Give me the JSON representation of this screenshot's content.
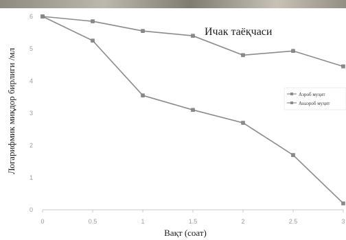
{
  "chart_data": {
    "type": "line",
    "title": "Ичак таёқчаси",
    "xlabel": "Вақт (соат)",
    "ylabel": "Логарифмик миқдор бирлиги /мл",
    "x": [
      0,
      0.5,
      1,
      1.5,
      2,
      2.5,
      3
    ],
    "x_tick_labels": [
      "0",
      "0.5",
      "1",
      "1.5",
      "2",
      "2.5",
      "3"
    ],
    "xlim": [
      0,
      3
    ],
    "ylim": [
      0,
      6
    ],
    "y_ticks": [
      0,
      1,
      2,
      3,
      4,
      5,
      6
    ],
    "grid": false,
    "legend_position": "right",
    "series": [
      {
        "name": "Аэроб муҳит",
        "values": [
          6.0,
          5.85,
          5.55,
          5.4,
          4.8,
          4.93,
          4.45
        ]
      },
      {
        "name": "Анаэроб муҳит",
        "values": [
          6.0,
          5.25,
          3.55,
          3.1,
          2.7,
          1.7,
          0.2
        ]
      }
    ],
    "colors": {
      "line": "#8a8a8a",
      "marker": "#8a8a8a",
      "axis": "#c8c8c8",
      "tick": "#9a9a9a"
    }
  }
}
